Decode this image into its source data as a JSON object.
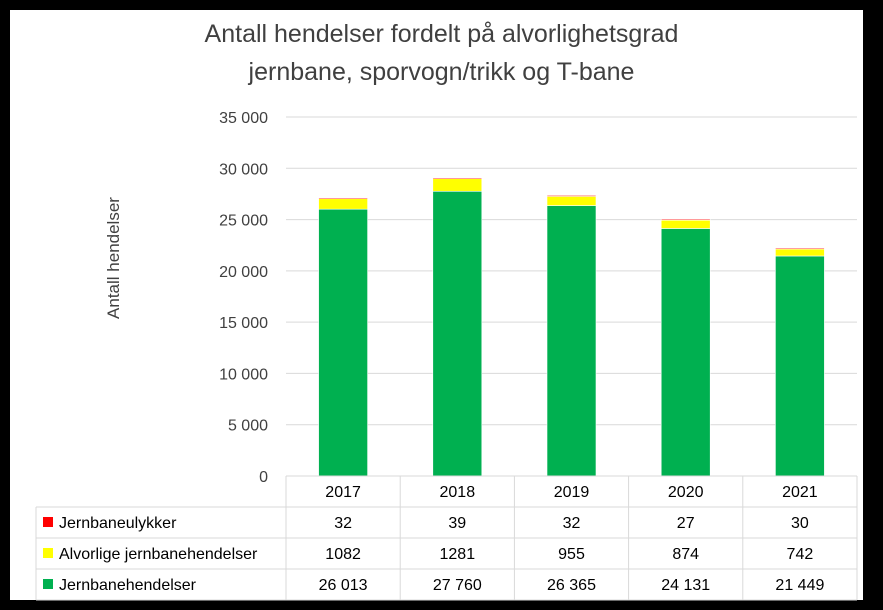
{
  "title_line1": "Antall hendelser fordelt på alvorlighetsgrad",
  "title_line2": "jernbane, sporvogn/trikk og T-bane",
  "chart_data": {
    "type": "bar",
    "stacked": true,
    "title": "Antall hendelser fordelt på alvorlighetsgrad jernbane, sporvogn/trikk og T-bane",
    "ylabel": "Antall hendelser",
    "xlabel": "",
    "ylim": [
      0,
      35000
    ],
    "yticks": [
      0,
      5000,
      10000,
      15000,
      20000,
      25000,
      30000,
      35000
    ],
    "ytick_labels": [
      "0",
      "5 000",
      "10 000",
      "15 000",
      "20 000",
      "25 000",
      "30 000",
      "35 000"
    ],
    "grid": true,
    "legend_placement": "bottom data table",
    "categories": [
      "2017",
      "2018",
      "2019",
      "2020",
      "2021"
    ],
    "series": [
      {
        "name": "Jernbanehendelser",
        "color": "#00B050",
        "values": [
          26013,
          27760,
          26365,
          24131,
          21449
        ],
        "labels": [
          "26 013",
          "27 760",
          "26 365",
          "24 131",
          "21 449"
        ]
      },
      {
        "name": "Alvorlige jernbanehendelser",
        "color": "#FFFF00",
        "values": [
          1082,
          1281,
          955,
          874,
          742
        ],
        "labels": [
          "1082",
          "1281",
          "955",
          "874",
          "742"
        ]
      },
      {
        "name": "Jernbaneulykker",
        "color": "#FF0000",
        "values": [
          32,
          39,
          32,
          27,
          30
        ],
        "labels": [
          "32",
          "39",
          "32",
          "27",
          "30"
        ]
      }
    ],
    "table_row_order": [
      "Jernbaneulykker",
      "Alvorlige jernbanehendelser",
      "Jernbanehendelser"
    ]
  }
}
